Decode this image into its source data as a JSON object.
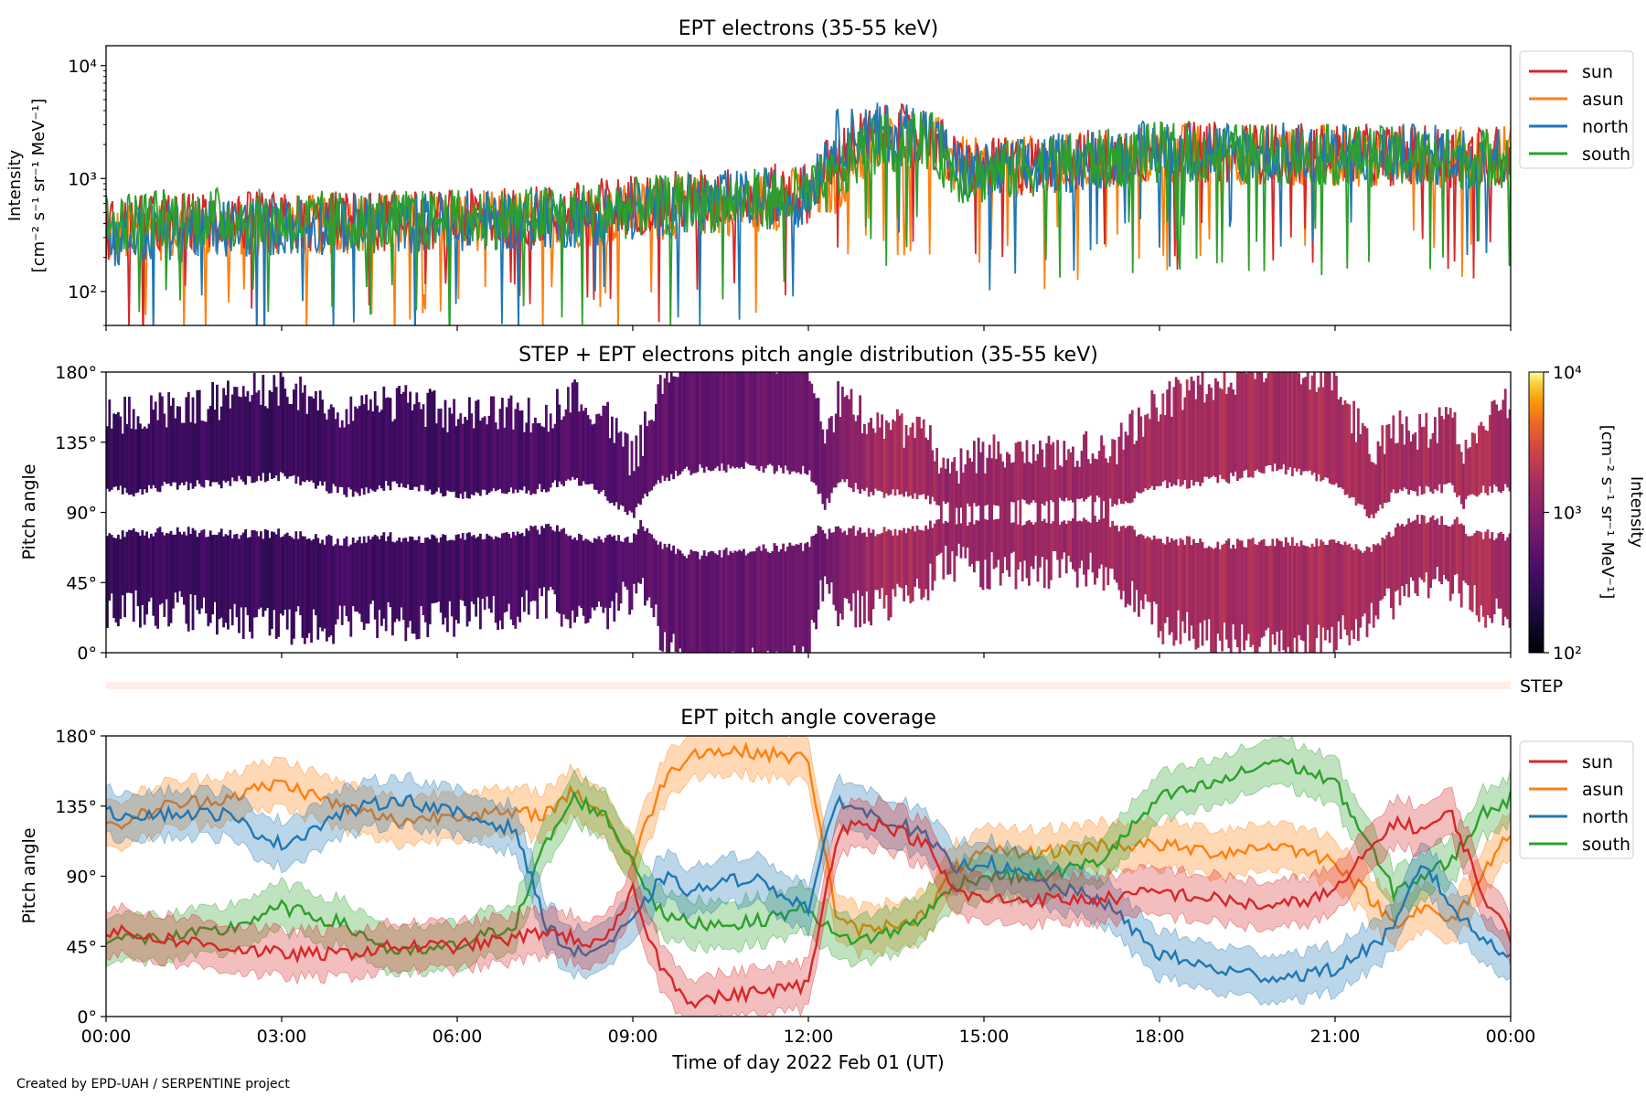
{
  "figure": {
    "credit": "Created by EPD-UAH / SERPENTINE project",
    "xlabel": "Time of day 2022 Feb 01 (UT)",
    "xticks": [
      "00:00",
      "03:00",
      "06:00",
      "09:00",
      "12:00",
      "15:00",
      "18:00",
      "21:00",
      "00:00"
    ]
  },
  "colors": {
    "sun": "#d62728",
    "asun": "#ff7f0e",
    "north": "#1f77b4",
    "south": "#2ca02c"
  },
  "chart_data": [
    {
      "type": "line",
      "title": "EPT electrons (35-55 keV)",
      "ylabel_line1": "Intensity",
      "ylabel_line2": "[cm⁻² s⁻¹ sr⁻¹ MeV⁻¹]",
      "yscale": "log",
      "ylim": [
        50,
        15000
      ],
      "yticks": [
        "10²",
        "10³",
        "10⁴"
      ],
      "xlim_hours": [
        0,
        24
      ],
      "legend": "outside-right",
      "series": [
        {
          "name": "sun",
          "color": "#d62728",
          "hours": [
            0,
            1,
            2,
            3,
            4,
            5,
            6,
            7,
            8,
            9,
            10,
            11,
            12,
            12.5,
            13,
            14,
            14.5,
            15,
            16,
            17,
            18,
            19,
            20,
            21,
            22,
            23,
            24
          ],
          "values": [
            350,
            400,
            420,
            400,
            420,
            420,
            430,
            450,
            500,
            600,
            650,
            700,
            750,
            1500,
            2300,
            2500,
            1300,
            1200,
            1350,
            1500,
            1750,
            1700,
            1650,
            1650,
            1600,
            1550,
            1600
          ]
        },
        {
          "name": "asun",
          "color": "#ff7f0e",
          "hours": [
            0,
            1,
            2,
            3,
            4,
            5,
            6,
            7,
            8,
            9,
            10,
            11,
            12,
            12.5,
            13,
            14,
            14.5,
            15,
            16,
            17,
            18,
            19,
            20,
            21,
            22,
            23,
            24
          ],
          "values": [
            300,
            350,
            380,
            380,
            400,
            400,
            420,
            430,
            450,
            500,
            550,
            600,
            700,
            900,
            1800,
            2400,
            1300,
            1200,
            1300,
            1450,
            1700,
            1650,
            1600,
            1600,
            1600,
            1550,
            1650
          ]
        },
        {
          "name": "north",
          "color": "#1f77b4",
          "hours": [
            0,
            1,
            2,
            3,
            4,
            5,
            6,
            7,
            8,
            9,
            10,
            11,
            12,
            12.5,
            13,
            14,
            14.5,
            15,
            16,
            17,
            18,
            19,
            20,
            21,
            22,
            23,
            24
          ],
          "values": [
            300,
            330,
            360,
            380,
            400,
            400,
            420,
            430,
            450,
            520,
            600,
            650,
            700,
            2200,
            2500,
            2600,
            1200,
            1100,
            1300,
            1500,
            1800,
            1750,
            1700,
            1650,
            1650,
            1600,
            1600
          ]
        },
        {
          "name": "south",
          "color": "#2ca02c",
          "hours": [
            0,
            1,
            2,
            3,
            4,
            5,
            6,
            7,
            8,
            9,
            10,
            11,
            12,
            12.5,
            13,
            14,
            14.5,
            15,
            16,
            17,
            18,
            19,
            20,
            21,
            22,
            23,
            24
          ],
          "values": [
            400,
            450,
            450,
            420,
            420,
            420,
            430,
            450,
            480,
            550,
            600,
            650,
            700,
            1000,
            1900,
            2300,
            1100,
            1100,
            1300,
            1450,
            1700,
            1650,
            1650,
            1600,
            1550,
            1500,
            1550
          ]
        }
      ]
    },
    {
      "type": "heatmap",
      "title": "STEP + EPT electrons pitch angle distribution (35-55 keV)",
      "ylabel": "Pitch angle",
      "ylim": [
        0,
        180
      ],
      "yticks": [
        "0°",
        "45°",
        "90°",
        "135°",
        "180°"
      ],
      "xlim_hours": [
        0,
        24
      ],
      "colorbar": {
        "scale": "log",
        "range": [
          100,
          10000
        ],
        "ticks": [
          "10²",
          "10³",
          "10⁴"
        ],
        "label_line1": "Intensity",
        "label_line2": "[cm⁻² s⁻¹ sr⁻¹ MeV⁻¹]",
        "colormap": "inferno"
      },
      "intensity_hours": [
        0,
        2,
        4,
        6,
        7.5,
        9,
        10.5,
        12.3,
        13.5,
        14.5,
        16,
        18,
        20,
        22,
        24
      ],
      "intensity_values": [
        300,
        320,
        340,
        360,
        420,
        500,
        600,
        700,
        1800,
        1200,
        1350,
        1600,
        1650,
        1600,
        1650
      ]
    },
    {
      "type": "line",
      "title": "EPT pitch angle coverage",
      "ylabel": "Pitch angle",
      "ylim": [
        0,
        180
      ],
      "yticks": [
        "0°",
        "45°",
        "90°",
        "135°",
        "180°"
      ],
      "xlim_hours": [
        0,
        24
      ],
      "strip_label": "STEP",
      "legend": "outside-right",
      "series": [
        {
          "name": "sun",
          "color": "#d62728",
          "hours": [
            0,
            1,
            2,
            3,
            4,
            5,
            6,
            7,
            7.5,
            8,
            8.5,
            9,
            9.5,
            10,
            11,
            12,
            12.5,
            13,
            13.5,
            14,
            14.5,
            15,
            16,
            17,
            18,
            19,
            20,
            21,
            22,
            22.5,
            23,
            23.5,
            24
          ],
          "values": [
            55,
            50,
            45,
            40,
            40,
            45,
            45,
            50,
            55,
            50,
            45,
            80,
            30,
            10,
            15,
            20,
            120,
            125,
            120,
            110,
            80,
            75,
            75,
            75,
            80,
            75,
            70,
            80,
            125,
            120,
            130,
            80,
            50
          ]
        },
        {
          "name": "asun",
          "color": "#ff7f0e",
          "hours": [
            0,
            1,
            2,
            3,
            4,
            5,
            6,
            7,
            7.5,
            8,
            8.5,
            9,
            9.5,
            10,
            11,
            12,
            12.5,
            13,
            13.5,
            14,
            14.5,
            15,
            16,
            17,
            18,
            19,
            20,
            21,
            22,
            22.5,
            23,
            23.5,
            24
          ],
          "values": [
            120,
            135,
            140,
            150,
            135,
            125,
            130,
            130,
            130,
            145,
            130,
            100,
            150,
            170,
            170,
            165,
            60,
            55,
            60,
            65,
            95,
            105,
            105,
            110,
            110,
            105,
            110,
            100,
            60,
            70,
            60,
            90,
            120
          ]
        },
        {
          "name": "north",
          "color": "#1f77b4",
          "hours": [
            0,
            1,
            2,
            3,
            4,
            5,
            6,
            7,
            7.5,
            8,
            8.5,
            9,
            9.5,
            10,
            11,
            12,
            12.5,
            13,
            13.5,
            14,
            14.5,
            15,
            16,
            17,
            18,
            19,
            20,
            21,
            22,
            22.5,
            23,
            23.5,
            24
          ],
          "values": [
            130,
            130,
            130,
            110,
            130,
            140,
            130,
            120,
            60,
            40,
            45,
            60,
            90,
            80,
            90,
            70,
            140,
            130,
            125,
            115,
            95,
            100,
            85,
            75,
            40,
            30,
            25,
            30,
            55,
            100,
            70,
            50,
            40
          ]
        },
        {
          "name": "south",
          "color": "#2ca02c",
          "hours": [
            0,
            1,
            2,
            3,
            4,
            5,
            6,
            7,
            7.5,
            8,
            8.5,
            9,
            9.5,
            10,
            11,
            12,
            12.5,
            13,
            13.5,
            14,
            14.5,
            15,
            16,
            17,
            18,
            19,
            20,
            21,
            22,
            22.5,
            23,
            23.5,
            24
          ],
          "values": [
            50,
            50,
            55,
            70,
            60,
            40,
            45,
            60,
            110,
            140,
            130,
            100,
            65,
            60,
            60,
            70,
            50,
            50,
            55,
            65,
            85,
            90,
            90,
            100,
            140,
            150,
            165,
            150,
            80,
            90,
            100,
            130,
            140
          ]
        }
      ]
    }
  ]
}
